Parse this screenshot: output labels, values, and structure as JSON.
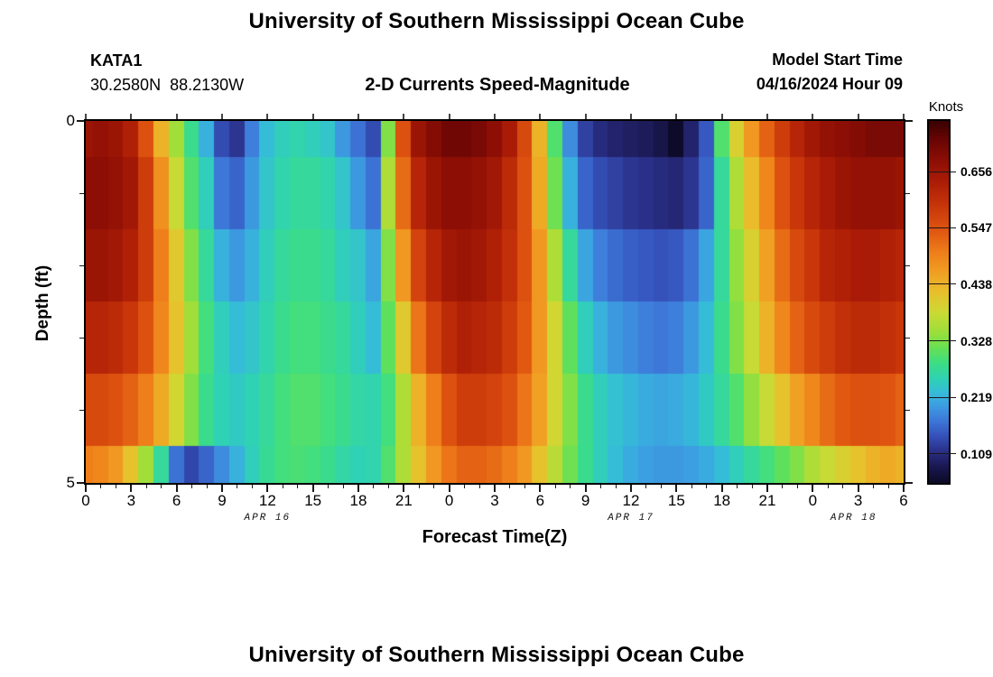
{
  "header": {
    "title": "University of Southern Mississippi Ocean Cube",
    "station_id": "KATA1",
    "station_coords": "30.2580N  88.2130W",
    "subtitle": "2-D Currents Speed-Magnitude",
    "model_start_label": "Model Start Time",
    "model_start_value": "04/16/2024 Hour 09"
  },
  "footer": {
    "next_panel_title": "University of Southern Mississippi Ocean Cube"
  },
  "chart_data": {
    "type": "heatmap",
    "title": "University of Southern Mississippi Ocean Cube",
    "subtitle": "2-D Currents Speed-Magnitude",
    "xlabel": "Forecast Time(Z)",
    "ylabel": "Depth (ft)",
    "colorbar_label": "Knots",
    "colorbar_tick_values": [
      0.656,
      0.547,
      0.438,
      0.328,
      0.219,
      0.109
    ],
    "colorbar_tick_labels": [
      "0.656",
      "0.547",
      "0.438",
      "0.328",
      "0.219",
      "0.109"
    ],
    "value_range": [
      0.053,
      0.754
    ],
    "x_hours": {
      "start": 0,
      "step": 1,
      "count": 55
    },
    "x_tick_interval_hours": 3,
    "x_tick_labels": [
      "0",
      "3",
      "6",
      "9",
      "12",
      "15",
      "18",
      "21",
      "0",
      "3",
      "6",
      "9",
      "12",
      "15",
      "18",
      "21",
      "0",
      "3",
      "6"
    ],
    "x_date_labels": [
      {
        "label": "APR 16",
        "hour": 12
      },
      {
        "label": "APR 17",
        "hour": 36
      },
      {
        "label": "APR 18",
        "hour": 50.7
      }
    ],
    "y_ticks": [
      {
        "label": "0",
        "ft": 0
      },
      {
        "label": "5",
        "ft": 5
      }
    ],
    "y_minor_ticks_ft": [
      1,
      2,
      3,
      4
    ],
    "depths_ft": [
      0,
      1,
      2,
      3,
      4,
      5
    ],
    "values_by_depth": [
      [
        0.66,
        0.67,
        0.66,
        0.63,
        0.55,
        0.44,
        0.35,
        0.28,
        0.22,
        0.14,
        0.12,
        0.18,
        0.23,
        0.25,
        0.26,
        0.25,
        0.24,
        0.2,
        0.17,
        0.14,
        0.33,
        0.55,
        0.66,
        0.69,
        0.71,
        0.71,
        0.7,
        0.68,
        0.64,
        0.56,
        0.44,
        0.3,
        0.19,
        0.13,
        0.11,
        0.1,
        0.095,
        0.09,
        0.08,
        0.055,
        0.1,
        0.15,
        0.3,
        0.4,
        0.47,
        0.53,
        0.58,
        0.62,
        0.65,
        0.67,
        0.68,
        0.69,
        0.7,
        0.7,
        0.7
      ],
      [
        0.68,
        0.68,
        0.67,
        0.65,
        0.58,
        0.48,
        0.38,
        0.3,
        0.25,
        0.175,
        0.16,
        0.2,
        0.24,
        0.26,
        0.27,
        0.27,
        0.26,
        0.24,
        0.2,
        0.17,
        0.36,
        0.52,
        0.62,
        0.66,
        0.68,
        0.68,
        0.67,
        0.65,
        0.61,
        0.55,
        0.45,
        0.32,
        0.22,
        0.16,
        0.14,
        0.13,
        0.12,
        0.115,
        0.11,
        0.105,
        0.12,
        0.16,
        0.27,
        0.36,
        0.43,
        0.49,
        0.55,
        0.59,
        0.62,
        0.64,
        0.66,
        0.67,
        0.67,
        0.67,
        0.66
      ],
      [
        0.66,
        0.66,
        0.65,
        0.63,
        0.58,
        0.5,
        0.41,
        0.33,
        0.27,
        0.22,
        0.2,
        0.22,
        0.25,
        0.27,
        0.28,
        0.28,
        0.27,
        0.25,
        0.24,
        0.21,
        0.33,
        0.47,
        0.57,
        0.62,
        0.65,
        0.66,
        0.65,
        0.63,
        0.6,
        0.55,
        0.47,
        0.36,
        0.27,
        0.21,
        0.18,
        0.165,
        0.155,
        0.15,
        0.145,
        0.15,
        0.17,
        0.21,
        0.27,
        0.34,
        0.4,
        0.46,
        0.52,
        0.56,
        0.59,
        0.62,
        0.63,
        0.64,
        0.64,
        0.63,
        0.62
      ],
      [
        0.62,
        0.62,
        0.61,
        0.59,
        0.55,
        0.49,
        0.42,
        0.35,
        0.29,
        0.25,
        0.23,
        0.24,
        0.26,
        0.28,
        0.29,
        0.29,
        0.28,
        0.27,
        0.25,
        0.23,
        0.31,
        0.41,
        0.51,
        0.57,
        0.61,
        0.63,
        0.62,
        0.61,
        0.58,
        0.54,
        0.47,
        0.39,
        0.31,
        0.25,
        0.22,
        0.2,
        0.19,
        0.18,
        0.175,
        0.18,
        0.2,
        0.23,
        0.28,
        0.33,
        0.38,
        0.44,
        0.49,
        0.53,
        0.56,
        0.58,
        0.6,
        0.61,
        0.61,
        0.6,
        0.59
      ],
      [
        0.56,
        0.56,
        0.55,
        0.53,
        0.5,
        0.45,
        0.39,
        0.33,
        0.28,
        0.255,
        0.245,
        0.255,
        0.27,
        0.29,
        0.3,
        0.3,
        0.29,
        0.28,
        0.265,
        0.26,
        0.29,
        0.36,
        0.44,
        0.5,
        0.55,
        0.58,
        0.58,
        0.57,
        0.55,
        0.51,
        0.46,
        0.39,
        0.33,
        0.28,
        0.25,
        0.235,
        0.225,
        0.215,
        0.21,
        0.215,
        0.225,
        0.245,
        0.27,
        0.3,
        0.34,
        0.38,
        0.42,
        0.46,
        0.49,
        0.52,
        0.54,
        0.55,
        0.55,
        0.545,
        0.53
      ],
      [
        0.5,
        0.49,
        0.47,
        0.42,
        0.35,
        0.27,
        0.17,
        0.135,
        0.16,
        0.19,
        0.22,
        0.25,
        0.275,
        0.29,
        0.295,
        0.29,
        0.28,
        0.265,
        0.255,
        0.26,
        0.3,
        0.36,
        0.42,
        0.47,
        0.51,
        0.53,
        0.53,
        0.52,
        0.5,
        0.47,
        0.42,
        0.37,
        0.32,
        0.28,
        0.25,
        0.23,
        0.215,
        0.205,
        0.2,
        0.2,
        0.205,
        0.215,
        0.23,
        0.25,
        0.27,
        0.29,
        0.31,
        0.33,
        0.36,
        0.38,
        0.4,
        0.42,
        0.44,
        0.45,
        0.44
      ]
    ],
    "colormap": [
      {
        "v": 0.053,
        "c": "#0c0a26"
      },
      {
        "v": 0.085,
        "c": "#1a1750"
      },
      {
        "v": 0.115,
        "c": "#2a2f87"
      },
      {
        "v": 0.145,
        "c": "#3552bb"
      },
      {
        "v": 0.175,
        "c": "#3d78d8"
      },
      {
        "v": 0.205,
        "c": "#3c9fe2"
      },
      {
        "v": 0.23,
        "c": "#35bdd8"
      },
      {
        "v": 0.255,
        "c": "#2fd2b4"
      },
      {
        "v": 0.285,
        "c": "#3cdd85"
      },
      {
        "v": 0.315,
        "c": "#66e055"
      },
      {
        "v": 0.345,
        "c": "#9bdf3b"
      },
      {
        "v": 0.385,
        "c": "#cdd934"
      },
      {
        "v": 0.425,
        "c": "#e9bf2b"
      },
      {
        "v": 0.46,
        "c": "#f0a023"
      },
      {
        "v": 0.5,
        "c": "#ee7f1a"
      },
      {
        "v": 0.545,
        "c": "#df5410"
      },
      {
        "v": 0.59,
        "c": "#c8360a"
      },
      {
        "v": 0.635,
        "c": "#ad1d06"
      },
      {
        "v": 0.68,
        "c": "#8c0e05"
      },
      {
        "v": 0.72,
        "c": "#670504"
      },
      {
        "v": 0.754,
        "c": "#3c0101"
      }
    ],
    "legend_position": "right",
    "grid": false
  }
}
